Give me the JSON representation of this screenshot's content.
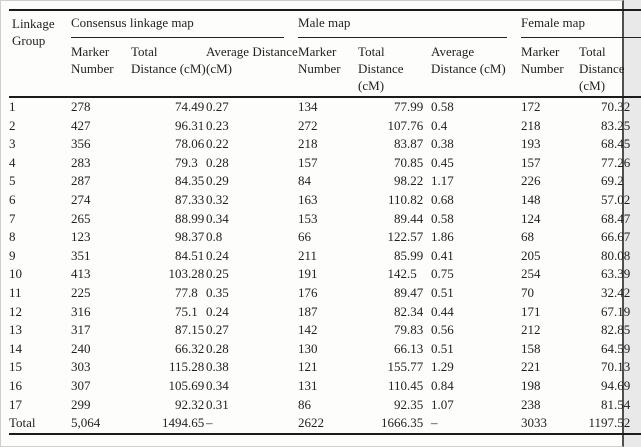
{
  "table": {
    "corner_header": "Linkage Group",
    "groups": [
      {
        "label": "Consensus linkage map"
      },
      {
        "label": "Male map"
      },
      {
        "label": "Female map"
      }
    ],
    "subheaders": [
      "Marker Number",
      "Total Distance (cM)",
      "Average Distance (cM)",
      "Marker Number",
      "Total Distance (cM)",
      "Average Distance (cM)",
      "Marker Number",
      "Total Distance (cM)"
    ],
    "rows": [
      [
        "1",
        "278",
        "74.49",
        "0.27",
        "134",
        "77.99",
        "0.58",
        "172",
        "70.32"
      ],
      [
        "2",
        "427",
        "96.31",
        "0.23",
        "272",
        "107.76",
        "0.4",
        "218",
        "83.25"
      ],
      [
        "3",
        "356",
        "78.06",
        "0.22",
        "218",
        "83.87",
        "0.38",
        "193",
        "68.45"
      ],
      [
        "4",
        "283",
        "79.3",
        "0.28",
        "157",
        "70.85",
        "0.45",
        "157",
        "77.26"
      ],
      [
        "5",
        "287",
        "84.35",
        "0.29",
        "84",
        "98.22",
        "1.17",
        "226",
        "69.2"
      ],
      [
        "6",
        "274",
        "87.33",
        "0.32",
        "163",
        "110.82",
        "0.68",
        "148",
        "57.02"
      ],
      [
        "7",
        "265",
        "88.99",
        "0.34",
        "153",
        "89.44",
        "0.58",
        "124",
        "68.47"
      ],
      [
        "8",
        "123",
        "98.37",
        "0.8",
        "66",
        "122.57",
        "1.86",
        "68",
        "66.67"
      ],
      [
        "9",
        "351",
        "84.51",
        "0.24",
        "211",
        "85.99",
        "0.41",
        "205",
        "80.08"
      ],
      [
        "10",
        "413",
        "103.28",
        "0.25",
        "191",
        "142.5",
        "0.75",
        "254",
        "63.39"
      ],
      [
        "11",
        "225",
        "77.8",
        "0.35",
        "176",
        "89.47",
        "0.51",
        "70",
        "32.42"
      ],
      [
        "12",
        "316",
        "75.1",
        "0.24",
        "187",
        "82.34",
        "0.44",
        "171",
        "67.19"
      ],
      [
        "13",
        "317",
        "87.15",
        "0.27",
        "142",
        "79.83",
        "0.56",
        "212",
        "82.85"
      ],
      [
        "14",
        "240",
        "66.32",
        "0.28",
        "130",
        "66.13",
        "0.51",
        "158",
        "64.59"
      ],
      [
        "15",
        "303",
        "115.28",
        "0.38",
        "121",
        "155.77",
        "1.29",
        "221",
        "70.13"
      ],
      [
        "16",
        "307",
        "105.69",
        "0.34",
        "131",
        "110.45",
        "0.84",
        "198",
        "94.69"
      ],
      [
        "17",
        "299",
        "92.32",
        "0.31",
        "86",
        "92.35",
        "1.07",
        "238",
        "81.54"
      ],
      [
        "Total",
        "5,064",
        "1494.65",
        "–",
        "2622",
        "1666.35",
        "–",
        "3033",
        "1197.52"
      ]
    ]
  }
}
